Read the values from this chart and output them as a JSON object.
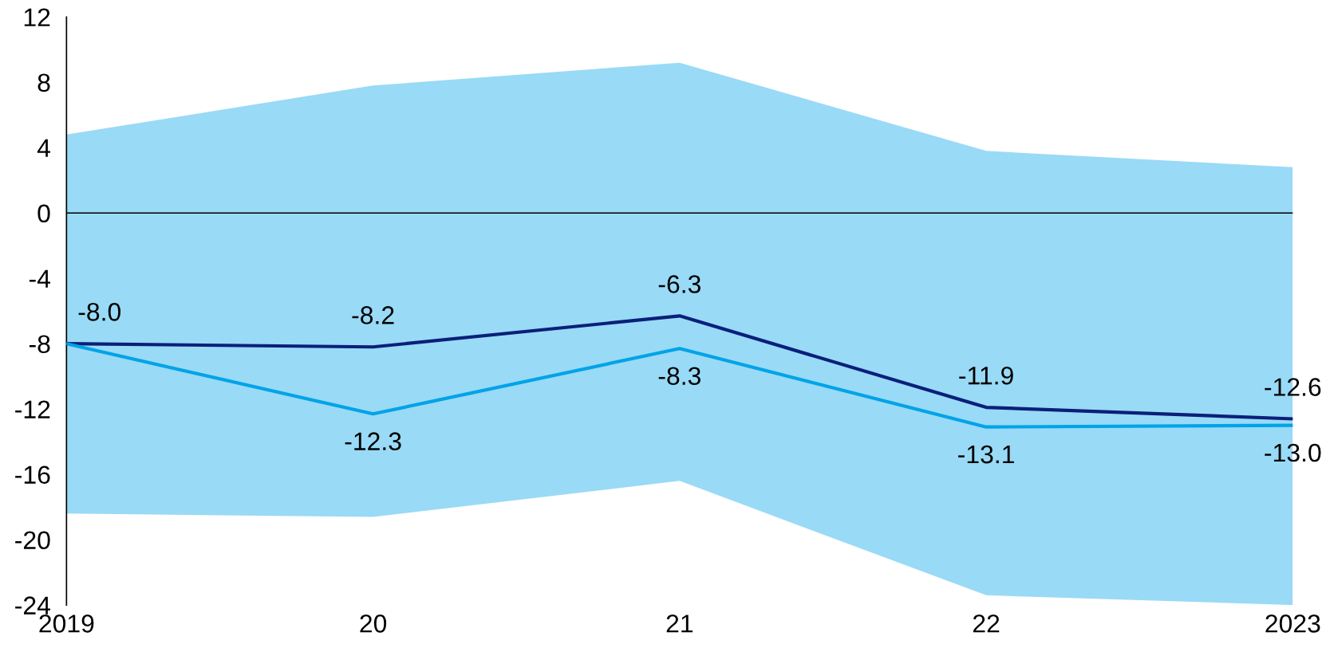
{
  "chart_data": {
    "type": "line",
    "categories": [
      "2019",
      "20",
      "21",
      "22",
      "2023"
    ],
    "series": [
      {
        "color": "#0a1f7a",
        "values": [
          -8.0,
          -8.2,
          -6.3,
          -11.9,
          -12.6
        ],
        "value_labels": [
          "-8.0",
          "-8.2",
          "-6.3",
          "-11.9",
          "-12.6"
        ]
      },
      {
        "color": "#00a3e8",
        "values": [
          -8.0,
          -12.3,
          -8.3,
          -13.1,
          -13.0
        ],
        "value_labels": [
          null,
          "-12.3",
          "-8.3",
          "-13.1",
          "-13.0"
        ],
        "lower": [
          -18.4,
          -18.6,
          -16.4,
          -23.4,
          -24.0
        ],
        "upper": [
          4.8,
          7.8,
          9.2,
          3.8,
          2.8
        ]
      }
    ],
    "ylim": [
      -24,
      12
    ],
    "yticks": [
      -24,
      -20,
      -16,
      -12,
      -8,
      -4,
      0,
      4,
      8,
      12
    ],
    "ref_lines": [
      {
        "axis": "y",
        "value": 0,
        "color": "#000000"
      }
    ],
    "grid": false,
    "legend": false
  }
}
